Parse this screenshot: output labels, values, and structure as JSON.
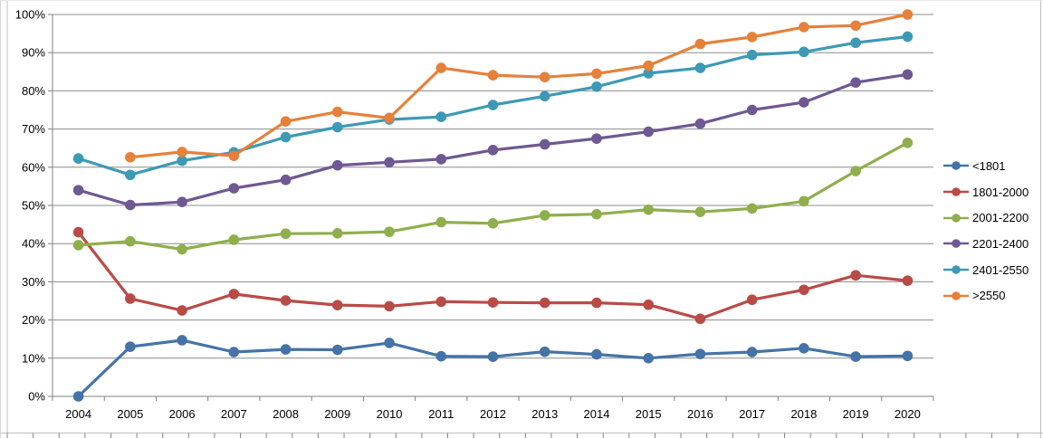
{
  "chart_data": {
    "type": "line",
    "title": "",
    "xlabel": "",
    "ylabel": "",
    "x": [
      "2004",
      "2005",
      "2006",
      "2007",
      "2008",
      "2009",
      "2010",
      "2011",
      "2012",
      "2013",
      "2014",
      "2015",
      "2016",
      "2017",
      "2018",
      "2019",
      "2020"
    ],
    "series": [
      {
        "name": "<1801",
        "color": "#4573A7",
        "values": [
          0,
          13.0,
          14.7,
          11.6,
          12.3,
          12.2,
          14.0,
          10.5,
          10.4,
          11.7,
          11.0,
          10.0,
          11.1,
          11.6,
          12.6,
          10.4,
          10.6
        ]
      },
      {
        "name": "1801-2000",
        "color": "#B94B47",
        "values": [
          43.0,
          25.6,
          22.5,
          26.8,
          25.1,
          23.9,
          23.6,
          24.8,
          24.6,
          24.5,
          24.5,
          24.0,
          20.3,
          25.3,
          27.9,
          31.7,
          30.3
        ]
      },
      {
        "name": "2001-2200",
        "color": "#8FAF4C",
        "values": [
          39.6,
          40.6,
          38.5,
          41.0,
          42.6,
          42.7,
          43.1,
          45.6,
          45.3,
          47.4,
          47.7,
          48.9,
          48.3,
          49.2,
          51.1,
          59.0,
          66.4
        ]
      },
      {
        "name": "2201-2400",
        "color": "#6F5893",
        "values": [
          54.0,
          50.1,
          50.9,
          54.5,
          56.7,
          60.5,
          61.3,
          62.1,
          64.5,
          66.0,
          67.5,
          69.3,
          71.4,
          75.0,
          77.0,
          82.2,
          84.3
        ]
      },
      {
        "name": "2401-2550",
        "color": "#3D9AB5",
        "values": [
          62.3,
          58.0,
          61.7,
          63.9,
          67.9,
          70.5,
          72.5,
          73.2,
          76.3,
          78.6,
          81.1,
          84.6,
          86.0,
          89.4,
          90.2,
          92.6,
          94.2
        ]
      },
      {
        "name": ">2550",
        "color": "#E5813B",
        "values": [
          null,
          62.6,
          64.0,
          63.0,
          72.0,
          74.5,
          72.9,
          86.0,
          84.1,
          83.6,
          84.5,
          86.6,
          92.3,
          94.1,
          96.7,
          97.1,
          100.0
        ]
      }
    ],
    "ylim": [
      0,
      100
    ],
    "ytick_step": 10,
    "ytick_labels": [
      "0%",
      "10%",
      "20%",
      "30%",
      "40%",
      "50%",
      "60%",
      "70%",
      "80%",
      "90%",
      "100%"
    ],
    "grid": true,
    "legend_position": "right"
  },
  "colors": {
    "gridline": "#8c8c8c",
    "axis": "#808080",
    "frame": "#bfbfbf",
    "background": "#ffffff",
    "text": "#000000"
  }
}
